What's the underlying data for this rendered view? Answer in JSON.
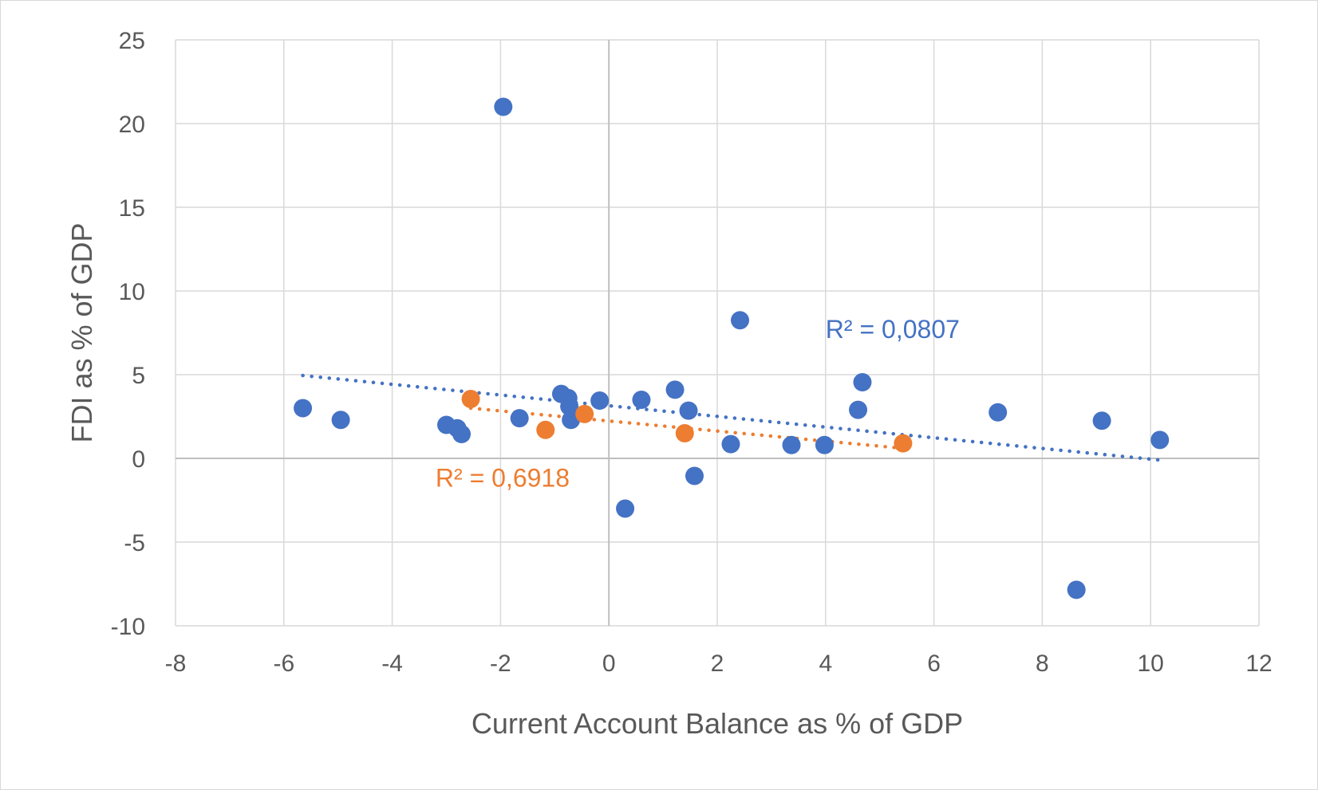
{
  "chart_data": {
    "type": "scatter",
    "title": "",
    "xlabel": "Current Account Balance as % of GDP",
    "ylabel": "FDI as % of GDP",
    "xlim": [
      -8,
      12
    ],
    "ylim": [
      -10,
      25
    ],
    "xticks": [
      -8,
      -6,
      -4,
      -2,
      0,
      2,
      4,
      6,
      8,
      10,
      12
    ],
    "yticks": [
      -10,
      -5,
      0,
      5,
      10,
      15,
      20,
      25
    ],
    "grid": true,
    "legend": "none",
    "series": [
      {
        "color": "#4472C4",
        "points": [
          [
            -5.65,
            3.0
          ],
          [
            -4.95,
            2.3
          ],
          [
            -3.0,
            2.0
          ],
          [
            -2.8,
            1.8
          ],
          [
            -2.72,
            1.45
          ],
          [
            -1.95,
            21.0
          ],
          [
            -1.65,
            2.4
          ],
          [
            -0.88,
            3.85
          ],
          [
            -0.75,
            3.6
          ],
          [
            -0.73,
            3.1
          ],
          [
            -0.7,
            2.3
          ],
          [
            -0.17,
            3.45
          ],
          [
            0.3,
            -3.0
          ],
          [
            0.6,
            3.5
          ],
          [
            1.22,
            4.1
          ],
          [
            1.47,
            2.85
          ],
          [
            1.58,
            -1.05
          ],
          [
            2.25,
            0.85
          ],
          [
            2.42,
            8.25
          ],
          [
            3.37,
            0.8
          ],
          [
            3.98,
            0.8
          ],
          [
            4.6,
            2.9
          ],
          [
            4.68,
            4.55
          ],
          [
            7.18,
            2.75
          ],
          [
            8.63,
            -7.85
          ],
          [
            9.1,
            2.25
          ],
          [
            10.17,
            1.1
          ]
        ],
        "trendline": {
          "style": "dotted",
          "x": [
            -5.65,
            10.17
          ],
          "y": [
            4.95,
            -0.1
          ]
        },
        "r2_label": "R² = 0,0807"
      },
      {
        "color": "#ED7D31",
        "points": [
          [
            -2.55,
            3.55
          ],
          [
            -1.17,
            1.7
          ],
          [
            -0.45,
            2.65
          ],
          [
            1.4,
            1.5
          ],
          [
            5.43,
            0.9
          ]
        ],
        "trendline": {
          "style": "dotted",
          "x": [
            -2.55,
            5.43
          ],
          "y": [
            3.0,
            0.6
          ]
        },
        "r2_label": "R² = 0,6918"
      }
    ]
  }
}
